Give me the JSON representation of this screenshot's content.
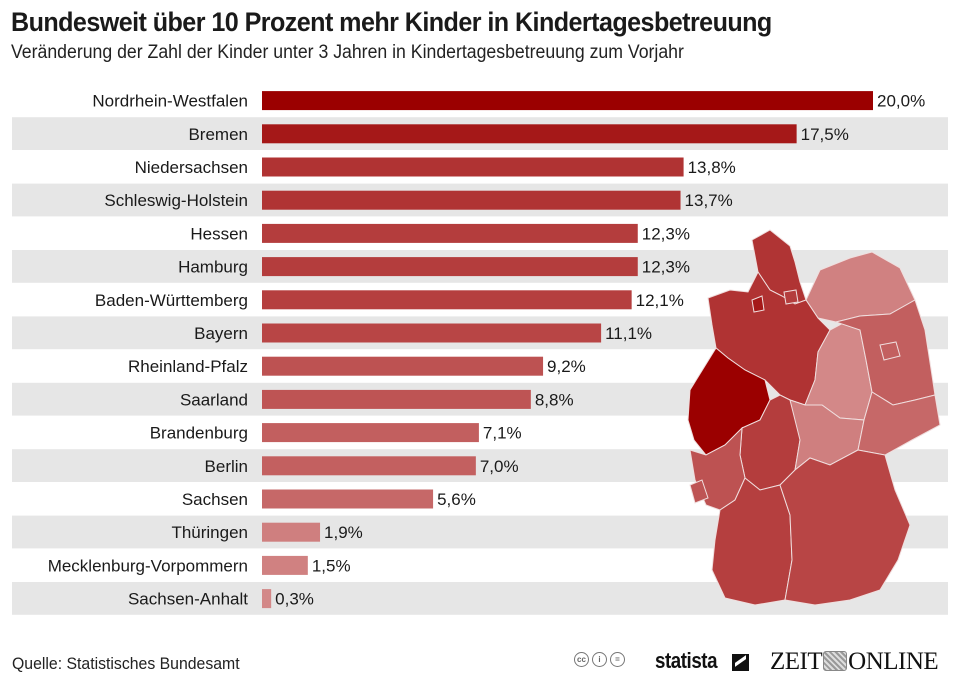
{
  "header": {
    "title": "Bundesweit über 10 Prozent mehr Kinder in Kindertagesbetreuung",
    "subtitle": "Veränderung der Zahl der Kinder unter 3 Jahren in Kindertagesbetreuung zum Vorjahr"
  },
  "footer": {
    "source": "Quelle: Statistisches Bundesamt",
    "license_icons": [
      "cc-icon",
      "by-icon",
      "nd-icon"
    ],
    "license_glyphs": [
      "cc",
      "i",
      "="
    ],
    "statista_logo": "statista",
    "zeit_logo_left": "ZEIT",
    "zeit_logo_right": "ONLINE"
  },
  "colors": {
    "bar_max": "#9b0000",
    "bar_min": "#d48a8a",
    "stripe": "#e6e6e6",
    "map_border": "#f0dede"
  },
  "chart_data": {
    "type": "bar",
    "orientation": "horizontal",
    "title": "Bundesweit über 10 Prozent mehr Kinder in Kindertagesbetreuung",
    "subtitle": "Veränderung der Zahl der Kinder unter 3 Jahren in Kindertagesbetreuung zum Vorjahr",
    "xlabel": "",
    "ylabel": "",
    "xlim": [
      0,
      20
    ],
    "grid": false,
    "unit": "%",
    "categories": [
      "Nordrhein-Westfalen",
      "Bremen",
      "Niedersachsen",
      "Schleswig-Holstein",
      "Hessen",
      "Hamburg",
      "Baden-Württemberg",
      "Bayern",
      "Rheinland-Pfalz",
      "Saarland",
      "Brandenburg",
      "Berlin",
      "Sachsen",
      "Thüringen",
      "Mecklenburg-Vorpommern",
      "Sachsen-Anhalt"
    ],
    "values": [
      20.0,
      17.5,
      13.8,
      13.7,
      12.3,
      12.3,
      12.1,
      11.1,
      9.2,
      8.8,
      7.1,
      7.0,
      5.6,
      1.9,
      1.5,
      0.3
    ],
    "labels": [
      "20,0%",
      "17,5%",
      "13,8%",
      "13,7%",
      "12,3%",
      "12,3%",
      "12,1%",
      "11,1%",
      "9,2%",
      "8,8%",
      "7,1%",
      "7,0%",
      "5,6%",
      "1,9%",
      "1,5%",
      "0,3%"
    ],
    "inset_map": "Germany choropleth of federal states shaded by the same values"
  }
}
